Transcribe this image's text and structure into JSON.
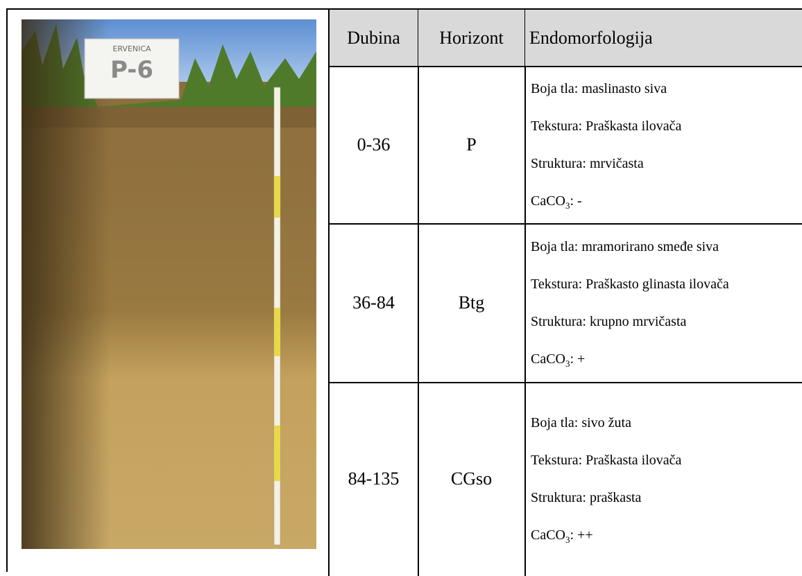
{
  "photo": {
    "sign_top": "ERVENICA",
    "sign_main": "P-6"
  },
  "table": {
    "headers": [
      "Dubina",
      "Horizont",
      "Endomorfologija"
    ],
    "rows": [
      {
        "depth": "0-36",
        "horizon": "P",
        "lines": [
          "Boja tla: maslinasto siva",
          "Tekstura: Praškasta ilovača",
          "Struktura: mrvičasta"
        ],
        "caco3": {
          "formula": "CaCO",
          "subscript": "3",
          "value": ": -"
        }
      },
      {
        "depth": "36-84",
        "horizon": "Btg",
        "lines": [
          "Boja tla: mramorirano smeđe siva",
          "Tekstura: Praškasto glinasta ilovača",
          "Struktura: krupno mrvičasta"
        ],
        "caco3": {
          "formula": "CaCO",
          "subscript": "3",
          "value": ": +"
        }
      },
      {
        "depth": "84-135",
        "horizon": "CGso",
        "lines": [
          "Boja tla: sivo žuta",
          "Tekstura: Praškasta ilovača",
          "Struktura: praškasta"
        ],
        "caco3": {
          "formula": "CaCO",
          "subscript": "3",
          "value": ": ++"
        }
      }
    ]
  }
}
